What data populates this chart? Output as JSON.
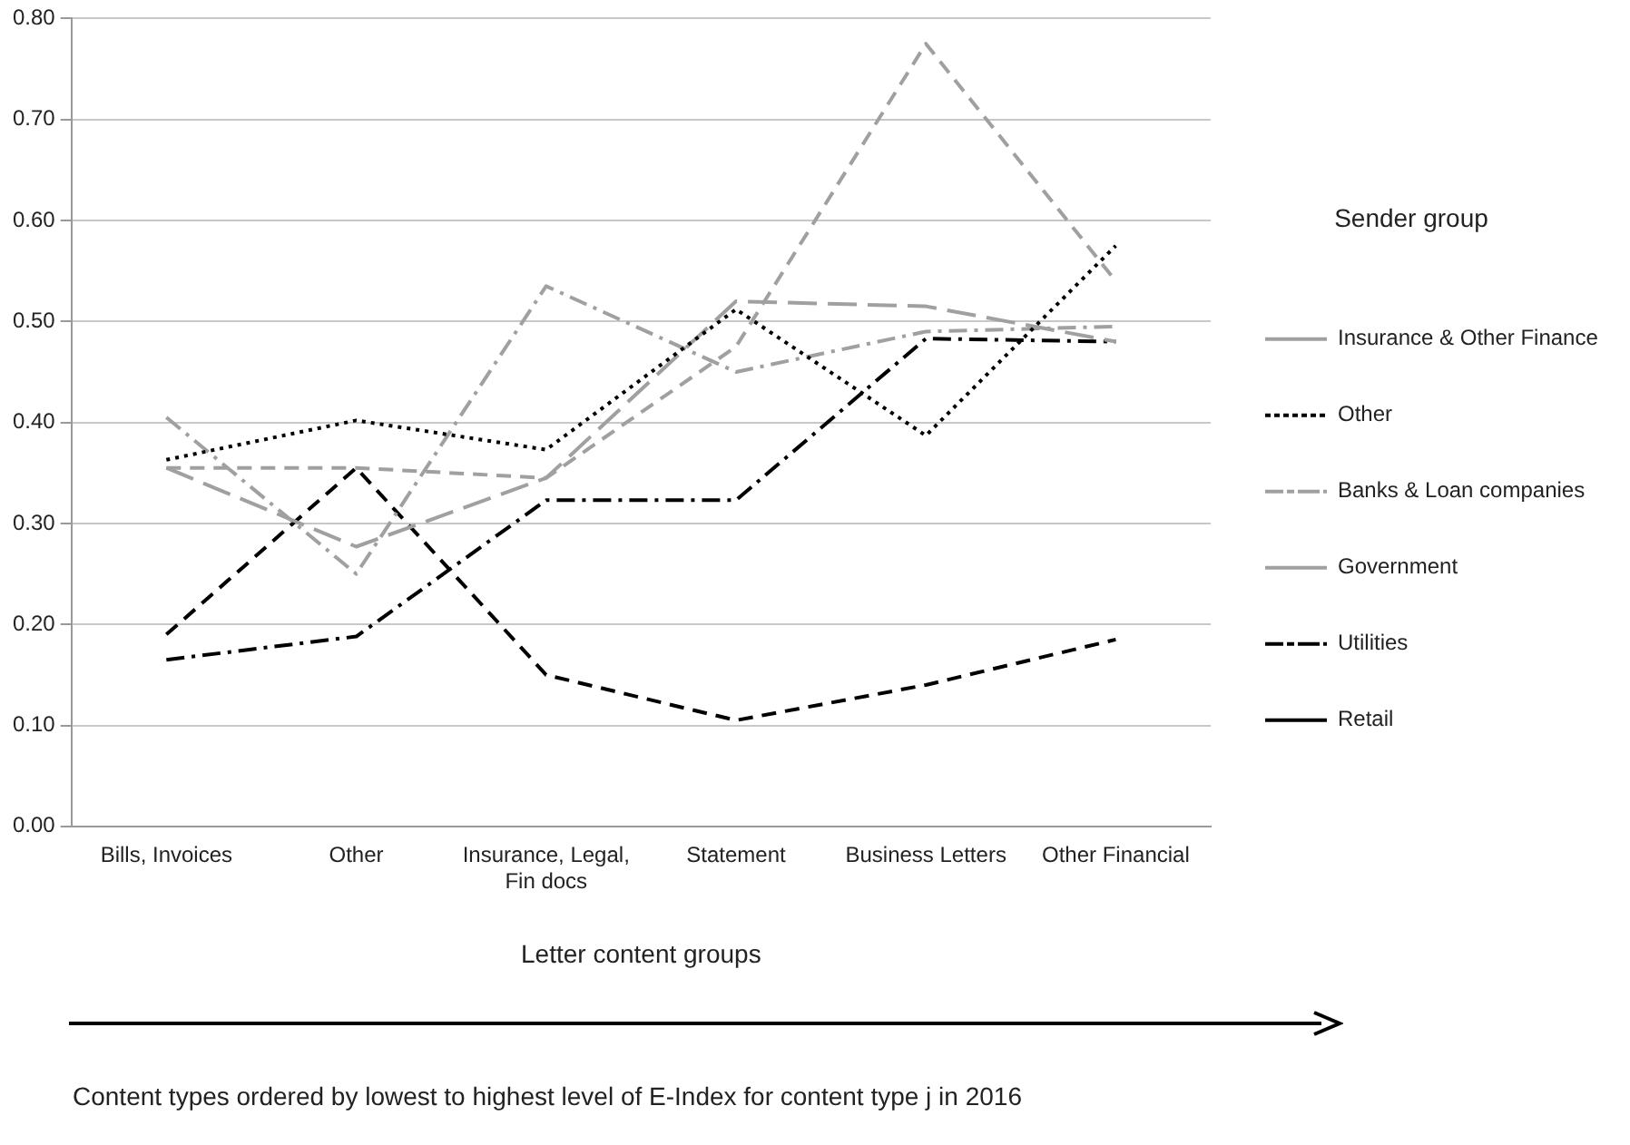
{
  "chart_data": {
    "type": "line",
    "xlabel": "Letter content groups",
    "legend_title": "Sender group",
    "legend": "right",
    "grid": "y",
    "marker": "none",
    "categories": [
      "Bills, Invoices",
      "Other",
      "Insurance, Legal, Fin docs",
      "Statement",
      "Business Letters",
      "Other Financial"
    ],
    "ylim": [
      0,
      0.8
    ],
    "yticks": [
      {
        "value": 0,
        "label": "0.00"
      },
      {
        "value": 0.1,
        "label": "0.10"
      },
      {
        "value": 0.2,
        "label": "0.20"
      },
      {
        "value": 0.3,
        "label": "0.30"
      },
      {
        "value": 0.4,
        "label": "0.40"
      },
      {
        "value": 0.5,
        "label": "0.50"
      },
      {
        "value": 0.6,
        "label": "0.60"
      },
      {
        "value": 0.7,
        "label": "0.70"
      },
      {
        "value": 0.8,
        "label": "0.80"
      }
    ],
    "series": [
      {
        "name": "Insurance & Other Finance",
        "color": "#a0a0a0",
        "line_style": "dashed",
        "values": [
          0.355,
          0.355,
          0.345,
          0.475,
          0.775,
          0.54
        ]
      },
      {
        "name": "Other",
        "color": "#000000",
        "line_style": "dotted",
        "values": [
          0.363,
          0.402,
          0.373,
          0.512,
          0.387,
          0.575
        ]
      },
      {
        "name": "Banks & Loan companies",
        "color": "#a0a0a0",
        "line_style": "dashdot",
        "values": [
          0.405,
          0.25,
          0.535,
          0.45,
          0.49,
          0.495
        ]
      },
      {
        "name": "Government",
        "color": "#a0a0a0",
        "line_style": "longdash",
        "values": [
          0.355,
          0.277,
          0.345,
          0.52,
          0.515,
          0.48
        ]
      },
      {
        "name": "Utilities",
        "color": "#000000",
        "line_style": "dashdot",
        "values": [
          0.165,
          0.188,
          0.323,
          0.323,
          0.483,
          0.48
        ]
      },
      {
        "name": "Retail",
        "color": "#000000",
        "line_style": "dashed",
        "values": [
          0.19,
          0.355,
          0.15,
          0.105,
          0.14,
          0.185
        ]
      }
    ],
    "annotations": [
      "Content types ordered by lowest to highest level of E-Index for content type j in 2016"
    ]
  }
}
